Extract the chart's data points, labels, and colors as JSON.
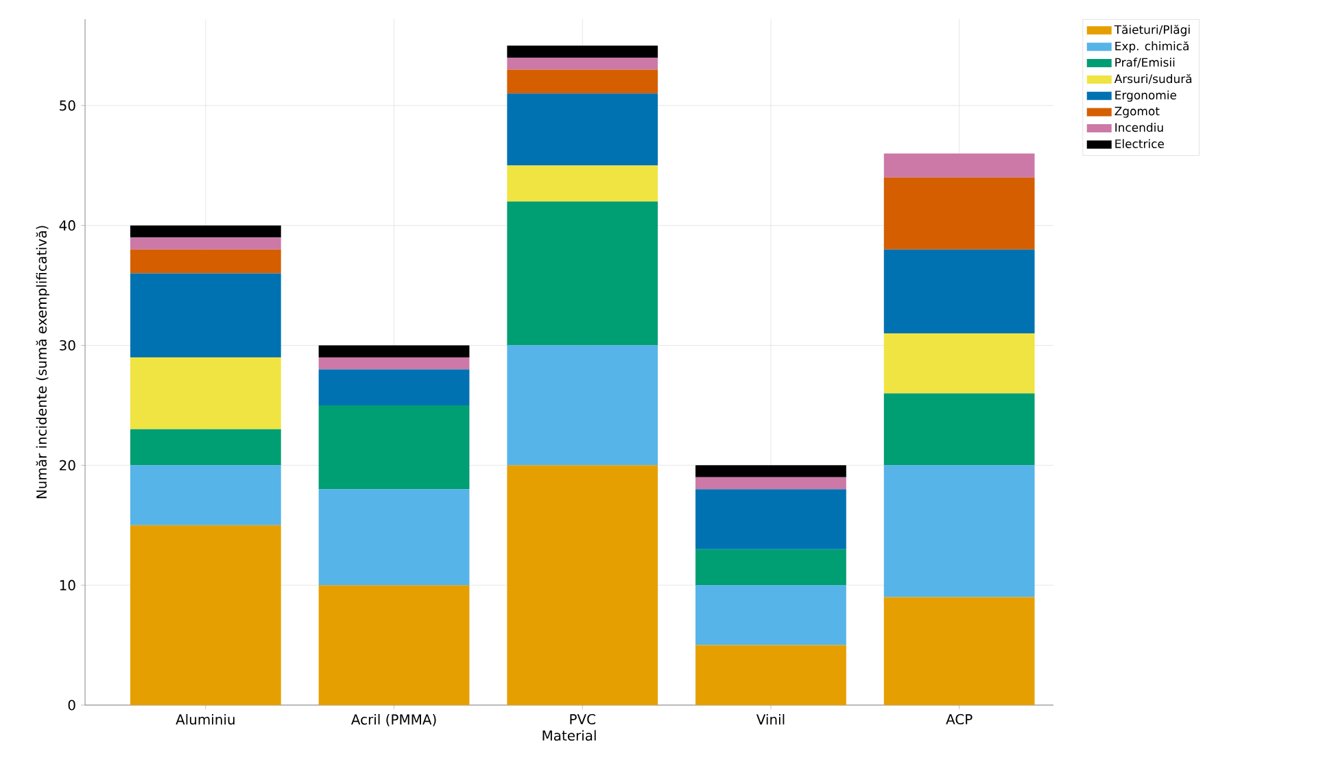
{
  "chart_data": {
    "type": "bar",
    "stacked": true,
    "xlabel": "Material",
    "ylabel": "Număr incidente (sumă exemplificativă)",
    "categories": [
      "Aluminiu",
      "Acril (PMMA)",
      "PVC",
      "Vinil",
      "ACP"
    ],
    "series": [
      {
        "name": "Tăieturi/Plăgi",
        "color": "#e69f00",
        "values": [
          15,
          10,
          20,
          5,
          9
        ]
      },
      {
        "name": "Exp. chimică",
        "color": "#56b4e9",
        "values": [
          5,
          8,
          10,
          5,
          11
        ]
      },
      {
        "name": "Praf/Emisii",
        "color": "#009e73",
        "values": [
          3,
          7,
          12,
          3,
          6
        ]
      },
      {
        "name": "Arsuri/sudură",
        "color": "#f0e442",
        "values": [
          6,
          0,
          3,
          0,
          5
        ]
      },
      {
        "name": "Ergonomie",
        "color": "#0072b2",
        "values": [
          7,
          3,
          6,
          5,
          7
        ]
      },
      {
        "name": "Zgomot",
        "color": "#d55e00",
        "values": [
          2,
          0,
          2,
          0,
          6
        ]
      },
      {
        "name": "Incendiu",
        "color": "#cc79a7",
        "values": [
          1,
          1,
          1,
          1,
          2
        ]
      },
      {
        "name": "Electrice",
        "color": "#000000",
        "values": [
          1,
          1,
          1,
          1,
          0
        ]
      }
    ],
    "ylim": [
      0,
      57.2
    ],
    "yticks": [
      0,
      10,
      20,
      30,
      40,
      50
    ],
    "grid": true,
    "legend": "top right"
  }
}
